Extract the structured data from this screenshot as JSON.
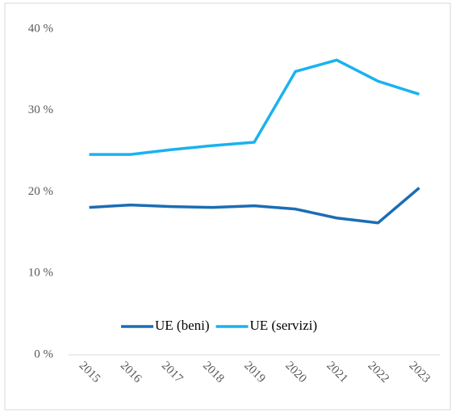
{
  "chart_data": {
    "type": "line",
    "x": [
      "2015",
      "2016",
      "2017",
      "2018",
      "2019",
      "2020",
      "2021",
      "2022",
      "2023"
    ],
    "series": [
      {
        "name": "UE (beni)",
        "color": "#1b6db4",
        "values": [
          18.1,
          18.4,
          18.2,
          18.1,
          18.3,
          17.9,
          16.8,
          16.2,
          20.5
        ]
      },
      {
        "name": "UE (servizi)",
        "color": "#1ab2ee",
        "values": [
          24.6,
          24.6,
          25.2,
          25.7,
          26.1,
          34.8,
          36.2,
          33.6,
          32.0
        ]
      }
    ],
    "ylim": [
      0,
      40
    ],
    "yticks": [
      {
        "value": 0,
        "label": "0 %"
      },
      {
        "value": 10,
        "label": "10 %"
      },
      {
        "value": 20,
        "label": "20 %"
      },
      {
        "value": 30,
        "label": "30 %"
      },
      {
        "value": 40,
        "label": "40 %"
      }
    ],
    "grid": false,
    "legend": "bottom"
  }
}
